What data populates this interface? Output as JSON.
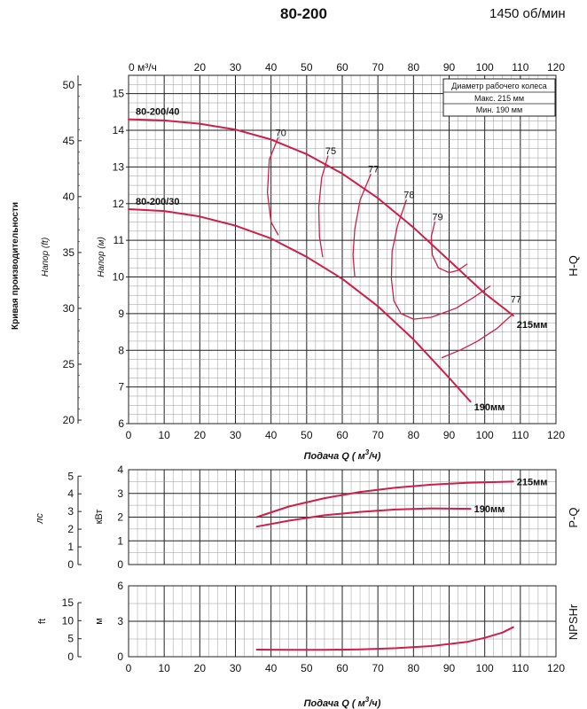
{
  "header": {
    "title": "80-200",
    "speed": "1450 об/мин"
  },
  "colors": {
    "curve": "#cc1f4a",
    "grid_major": "#222222",
    "grid_minor": "#9a9a9a",
    "text": "#111111"
  },
  "legend_box": {
    "title": "Диаметр рабочего колеса",
    "max": "Макс.  215 мм",
    "min": "Мин.  190 мм"
  },
  "side_labels": {
    "hq": "H-Q",
    "pq": "P-Q",
    "npshr": "NPSHr"
  },
  "chart_data": [
    {
      "name": "hq",
      "type": "line",
      "title": "",
      "xlabel": "Подача Q ( м³/ч)",
      "xlabel_parts": [
        "Подача Q ( ",
        "м",
        "3",
        "/ч)"
      ],
      "x_top_label": "0 м³/ч",
      "ylabel": "Напор (м)",
      "ylabel_ft": "Напор (ft)",
      "ylabel_outer": "Кривая производительности",
      "xlim": [
        0,
        120
      ],
      "ylim": [
        6,
        15.5
      ],
      "x_ticks": [
        "0",
        "10",
        "20",
        "30",
        "40",
        "50",
        "60",
        "70",
        "80",
        "90",
        "100",
        "110",
        "120"
      ],
      "x_top_ticks": [
        "20",
        "30",
        "40",
        "50",
        "60",
        "70",
        "80",
        "90",
        "100",
        "110",
        "120"
      ],
      "y_ticks": [
        "6",
        "7",
        "8",
        "9",
        "10",
        "11",
        "12",
        "13",
        "14",
        "15"
      ],
      "ft_ticks": [
        "20",
        "25",
        "30",
        "35",
        "40",
        "45",
        "50"
      ],
      "ft_values": [
        20,
        25,
        30,
        35,
        40,
        45,
        50
      ],
      "grid": true,
      "series": [
        {
          "name": "80-200/40",
          "end_label": "215мм",
          "x": [
            0,
            10,
            20,
            30,
            40,
            50,
            60,
            70,
            80,
            90,
            100,
            108
          ],
          "y": [
            14.3,
            14.27,
            14.18,
            14.02,
            13.75,
            13.35,
            12.82,
            12.15,
            11.35,
            10.45,
            9.55,
            8.95
          ]
        },
        {
          "name": "80-200/30",
          "end_label": "190мм",
          "x": [
            0,
            10,
            20,
            30,
            40,
            50,
            60,
            70,
            80,
            90,
            96
          ],
          "y": [
            11.85,
            11.8,
            11.65,
            11.4,
            11.05,
            10.55,
            9.95,
            9.2,
            8.3,
            7.25,
            6.6
          ]
        }
      ],
      "efficiency_labels": [
        {
          "value": "70",
          "x": 42,
          "y": 13.8
        },
        {
          "value": "75",
          "x": 56,
          "y": 13.3
        },
        {
          "value": "77",
          "x": 68,
          "y": 12.8
        },
        {
          "value": "78",
          "x": 78,
          "y": 12.1
        },
        {
          "value": "79",
          "x": 86,
          "y": 11.5
        },
        {
          "value": "77",
          "x": 108,
          "y": 9.25
        }
      ],
      "efficiency_contours": [
        {
          "value": "70",
          "x": [
            42,
            39.5,
            39,
            40,
            42
          ],
          "y": [
            13.8,
            13.2,
            12.3,
            11.5,
            11.15
          ]
        },
        {
          "value": "75",
          "x": [
            56,
            54.2,
            53.4,
            53.6,
            54.5
          ],
          "y": [
            13.3,
            12.7,
            11.9,
            11.1,
            10.55
          ]
        },
        {
          "value": "77",
          "x": [
            68,
            65,
            63.5,
            63,
            63.5
          ],
          "y": [
            12.8,
            12.1,
            11.3,
            10.6,
            10.0
          ]
        },
        {
          "value": "78",
          "x": [
            78,
            75.5,
            74,
            73.8,
            74.5,
            76.5,
            80,
            85,
            92,
            97,
            101.5
          ],
          "y": [
            12.1,
            11.4,
            10.7,
            9.95,
            9.35,
            9.0,
            8.85,
            8.9,
            9.15,
            9.45,
            9.75
          ]
        },
        {
          "value": "79",
          "x": [
            86,
            85,
            85.3,
            87,
            90,
            92.5,
            95
          ],
          "y": [
            11.5,
            11.1,
            10.6,
            10.25,
            10.12,
            10.18,
            10.35
          ]
        },
        {
          "value": "77",
          "x": [
            108,
            103.5,
            98,
            93,
            88
          ],
          "y": [
            9.0,
            8.6,
            8.25,
            8.0,
            7.8
          ]
        }
      ]
    },
    {
      "name": "pq",
      "type": "line",
      "ylabel": "кВт",
      "ylabel_hp": "лс",
      "xlim": [
        0,
        120
      ],
      "ylim": [
        0,
        4
      ],
      "y_ticks": [
        "0",
        "1",
        "2",
        "3",
        "4"
      ],
      "hp_ticks": [
        "0",
        "1",
        "2",
        "3",
        "4",
        "5"
      ],
      "hp_values": [
        0,
        1,
        2,
        3,
        4,
        5
      ],
      "grid": true,
      "series": [
        {
          "name": "215мм",
          "x": [
            36,
            45,
            55,
            65,
            75,
            85,
            95,
            108
          ],
          "y": [
            2.0,
            2.45,
            2.8,
            3.06,
            3.24,
            3.37,
            3.45,
            3.5
          ]
        },
        {
          "name": "190мм",
          "x": [
            36,
            45,
            55,
            65,
            75,
            85,
            96
          ],
          "y": [
            1.6,
            1.85,
            2.08,
            2.22,
            2.32,
            2.37,
            2.35
          ]
        }
      ]
    },
    {
      "name": "npshr",
      "type": "line",
      "xlabel": "Подача Q ( м³/ч)",
      "xlabel_parts": [
        "Подача Q ( ",
        "м",
        "3",
        "/ч)"
      ],
      "ylabel": "м",
      "ylabel_ft": "ft",
      "xlim": [
        0,
        120
      ],
      "ylim": [
        0,
        6
      ],
      "x_ticks": [
        "0",
        "10",
        "20",
        "30",
        "40",
        "50",
        "60",
        "70",
        "80",
        "90",
        "100",
        "110",
        "120"
      ],
      "y_ticks": [
        "0",
        "3",
        "6"
      ],
      "ft_ticks": [
        "0",
        "5",
        "10",
        "15"
      ],
      "ft_values": [
        0,
        5,
        10,
        15
      ],
      "grid": true,
      "series": [
        {
          "name": "NPSHr",
          "x": [
            36,
            45,
            55,
            65,
            75,
            85,
            95,
            100,
            105,
            108
          ],
          "y": [
            0.6,
            0.58,
            0.58,
            0.62,
            0.72,
            0.9,
            1.25,
            1.6,
            2.05,
            2.5
          ]
        }
      ]
    }
  ]
}
